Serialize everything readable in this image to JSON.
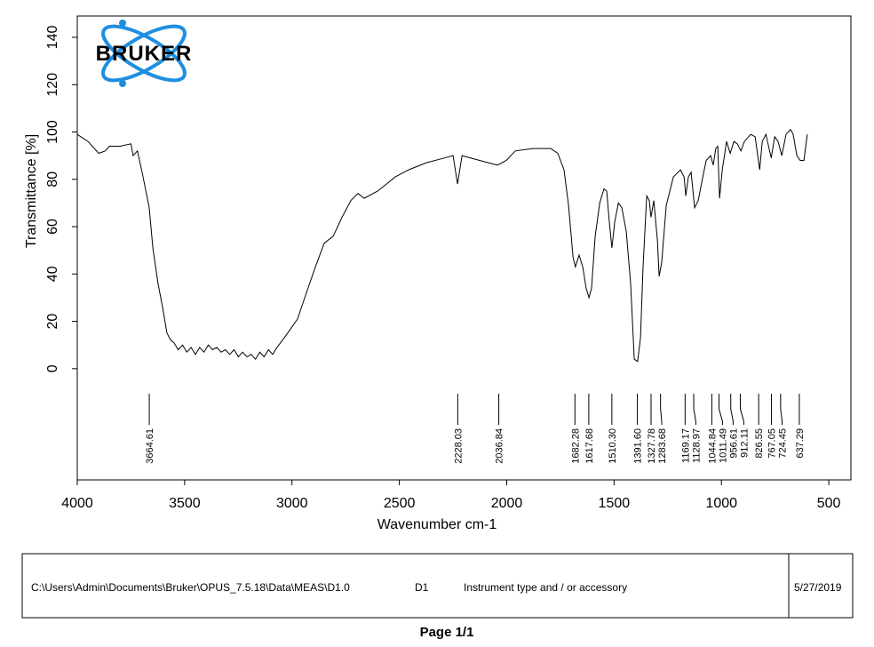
{
  "chart_data": {
    "type": "line",
    "logo": "BRUKER",
    "xlabel": "Wavenumber cm-1",
    "ylabel": "Transmittance [%]",
    "color": "#000000",
    "xlim": [
      4000,
      397
    ],
    "ylim": [
      -47,
      149
    ],
    "xticks": [
      4000,
      3500,
      3000,
      2500,
      2000,
      1500,
      1000,
      500
    ],
    "yticks": [
      0,
      20,
      40,
      60,
      80,
      100,
      120,
      140
    ],
    "x": [
      4000,
      3950,
      3900,
      3870,
      3850,
      3800,
      3750,
      3740,
      3720,
      3698,
      3665,
      3648,
      3624,
      3603,
      3582,
      3565,
      3550,
      3530,
      3510,
      3490,
      3470,
      3450,
      3430,
      3410,
      3390,
      3370,
      3350,
      3330,
      3310,
      3290,
      3270,
      3250,
      3230,
      3210,
      3190,
      3170,
      3150,
      3130,
      3110,
      3090,
      3070,
      3036,
      2974,
      2933,
      2891,
      2850,
      2808,
      2767,
      2726,
      2693,
      2664,
      2602,
      2560,
      2519,
      2457,
      2374,
      2291,
      2250,
      2229,
      2208,
      2126,
      2043,
      2002,
      1960,
      1878,
      1795,
      1762,
      1733,
      1712,
      1691,
      1680,
      1663,
      1646,
      1630,
      1617,
      1605,
      1588,
      1567,
      1547,
      1534,
      1522,
      1510,
      1497,
      1480,
      1464,
      1443,
      1423,
      1406,
      1390,
      1377,
      1365,
      1348,
      1336,
      1328,
      1315,
      1298,
      1290,
      1278,
      1257,
      1224,
      1191,
      1174,
      1166,
      1154,
      1141,
      1125,
      1108,
      1091,
      1071,
      1050,
      1038,
      1026,
      1017,
      1009,
      996,
      976,
      959,
      942,
      926,
      909,
      893,
      864,
      843,
      822,
      810,
      793,
      768,
      752,
      736,
      719,
      699,
      678,
      666,
      649,
      633,
      616,
      600
    ],
    "values": [
      99,
      96,
      91,
      92,
      94,
      94,
      95,
      90,
      92,
      83,
      68,
      51,
      36,
      26,
      15,
      12,
      11,
      8,
      10,
      7,
      9,
      6,
      9,
      7,
      10,
      8,
      9,
      7,
      8,
      6,
      8,
      5,
      7,
      5,
      6,
      4,
      7,
      5,
      8,
      6,
      9,
      13,
      21,
      32,
      43,
      53,
      56,
      64,
      71,
      74,
      72,
      75,
      78,
      81,
      84,
      87,
      89,
      90,
      78,
      90,
      88,
      86,
      88,
      92,
      93,
      93,
      91,
      84,
      69,
      47,
      43,
      48,
      43,
      34,
      30,
      34,
      56,
      70,
      76,
      75,
      62,
      51,
      62,
      70,
      68,
      58,
      36,
      4,
      3,
      13,
      43,
      73,
      71,
      64,
      71,
      54,
      39,
      45,
      69,
      81,
      84,
      81,
      73,
      81,
      83,
      68,
      71,
      79,
      88,
      90,
      86,
      93,
      94,
      72,
      84,
      96,
      91,
      96,
      95,
      92,
      96,
      99,
      98,
      84,
      96,
      99,
      89,
      98,
      96,
      90,
      99,
      101,
      99,
      90,
      88,
      88,
      99
    ],
    "peaks": {
      "values": [
        3664.61,
        2228.03,
        2036.84,
        1682.28,
        1617.68,
        1510.3,
        1391.6,
        1327.78,
        1283.68,
        1169.17,
        1128.97,
        1044.84,
        1011.49,
        956.61,
        912.11,
        826.55,
        767.05,
        724.45,
        637.29
      ],
      "value_labels": [
        "3664.61",
        "2228.03",
        "2036.84",
        "1682.28",
        "1617.68",
        "1510.30",
        "1391.60",
        "1327.78",
        "1283.68",
        "1169.17",
        "1128.97",
        "1044.84",
        "1011.49",
        "956.61",
        "912.11",
        "826.55",
        "767.05",
        "724.45",
        "637.29"
      ]
    }
  },
  "footer": {
    "file_path": "C:\\Users\\Admin\\Documents\\Bruker\\OPUS_7.5.18\\Data\\MEAS\\D1.0",
    "sample": "D1",
    "instrument": "Instrument type and / or accessory",
    "date": "5/27/2019"
  },
  "page": "Page 1/1"
}
